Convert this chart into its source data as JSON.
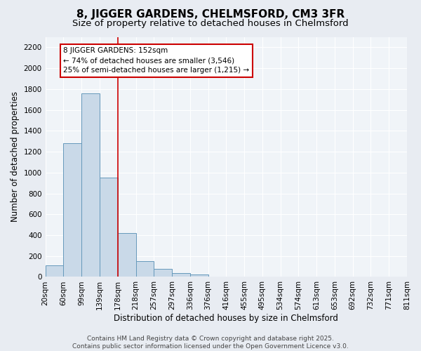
{
  "title": "8, JIGGER GARDENS, CHELMSFORD, CM3 3FR",
  "subtitle": "Size of property relative to detached houses in Chelmsford",
  "xlabel": "Distribution of detached houses by size in Chelmsford",
  "ylabel": "Number of detached properties",
  "footer_line1": "Contains HM Land Registry data © Crown copyright and database right 2025.",
  "footer_line2": "Contains public sector information licensed under the Open Government Licence v3.0.",
  "bin_labels": [
    "20sqm",
    "60sqm",
    "99sqm",
    "139sqm",
    "178sqm",
    "218sqm",
    "257sqm",
    "297sqm",
    "336sqm",
    "376sqm",
    "416sqm",
    "455sqm",
    "495sqm",
    "534sqm",
    "574sqm",
    "613sqm",
    "653sqm",
    "692sqm",
    "732sqm",
    "771sqm",
    "811sqm"
  ],
  "values": [
    113,
    1280,
    1760,
    950,
    420,
    148,
    75,
    40,
    22,
    0,
    0,
    0,
    0,
    0,
    0,
    0,
    0,
    0,
    0,
    0
  ],
  "bar_color": "#c9d9e8",
  "bar_edge_color": "#6699bb",
  "annotation_title": "8 JIGGER GARDENS: 152sqm",
  "annotation_line1": "← 74% of detached houses are smaller (3,546)",
  "annotation_line2": "25% of semi-detached houses are larger (1,215) →",
  "annotation_box_color": "#ffffff",
  "annotation_box_edge": "#cc0000",
  "annotation_text_color": "#000000",
  "vline_color": "#cc0000",
  "vline_x": 3.5,
  "ylim": [
    0,
    2300
  ],
  "yticks": [
    0,
    200,
    400,
    600,
    800,
    1000,
    1200,
    1400,
    1600,
    1800,
    2000,
    2200
  ],
  "bg_color": "#e8ecf2",
  "plot_bg_color": "#f0f4f8",
  "grid_color": "#ffffff",
  "title_fontsize": 11,
  "subtitle_fontsize": 9.5,
  "axis_label_fontsize": 8.5,
  "tick_fontsize": 7.5,
  "footer_fontsize": 6.5
}
